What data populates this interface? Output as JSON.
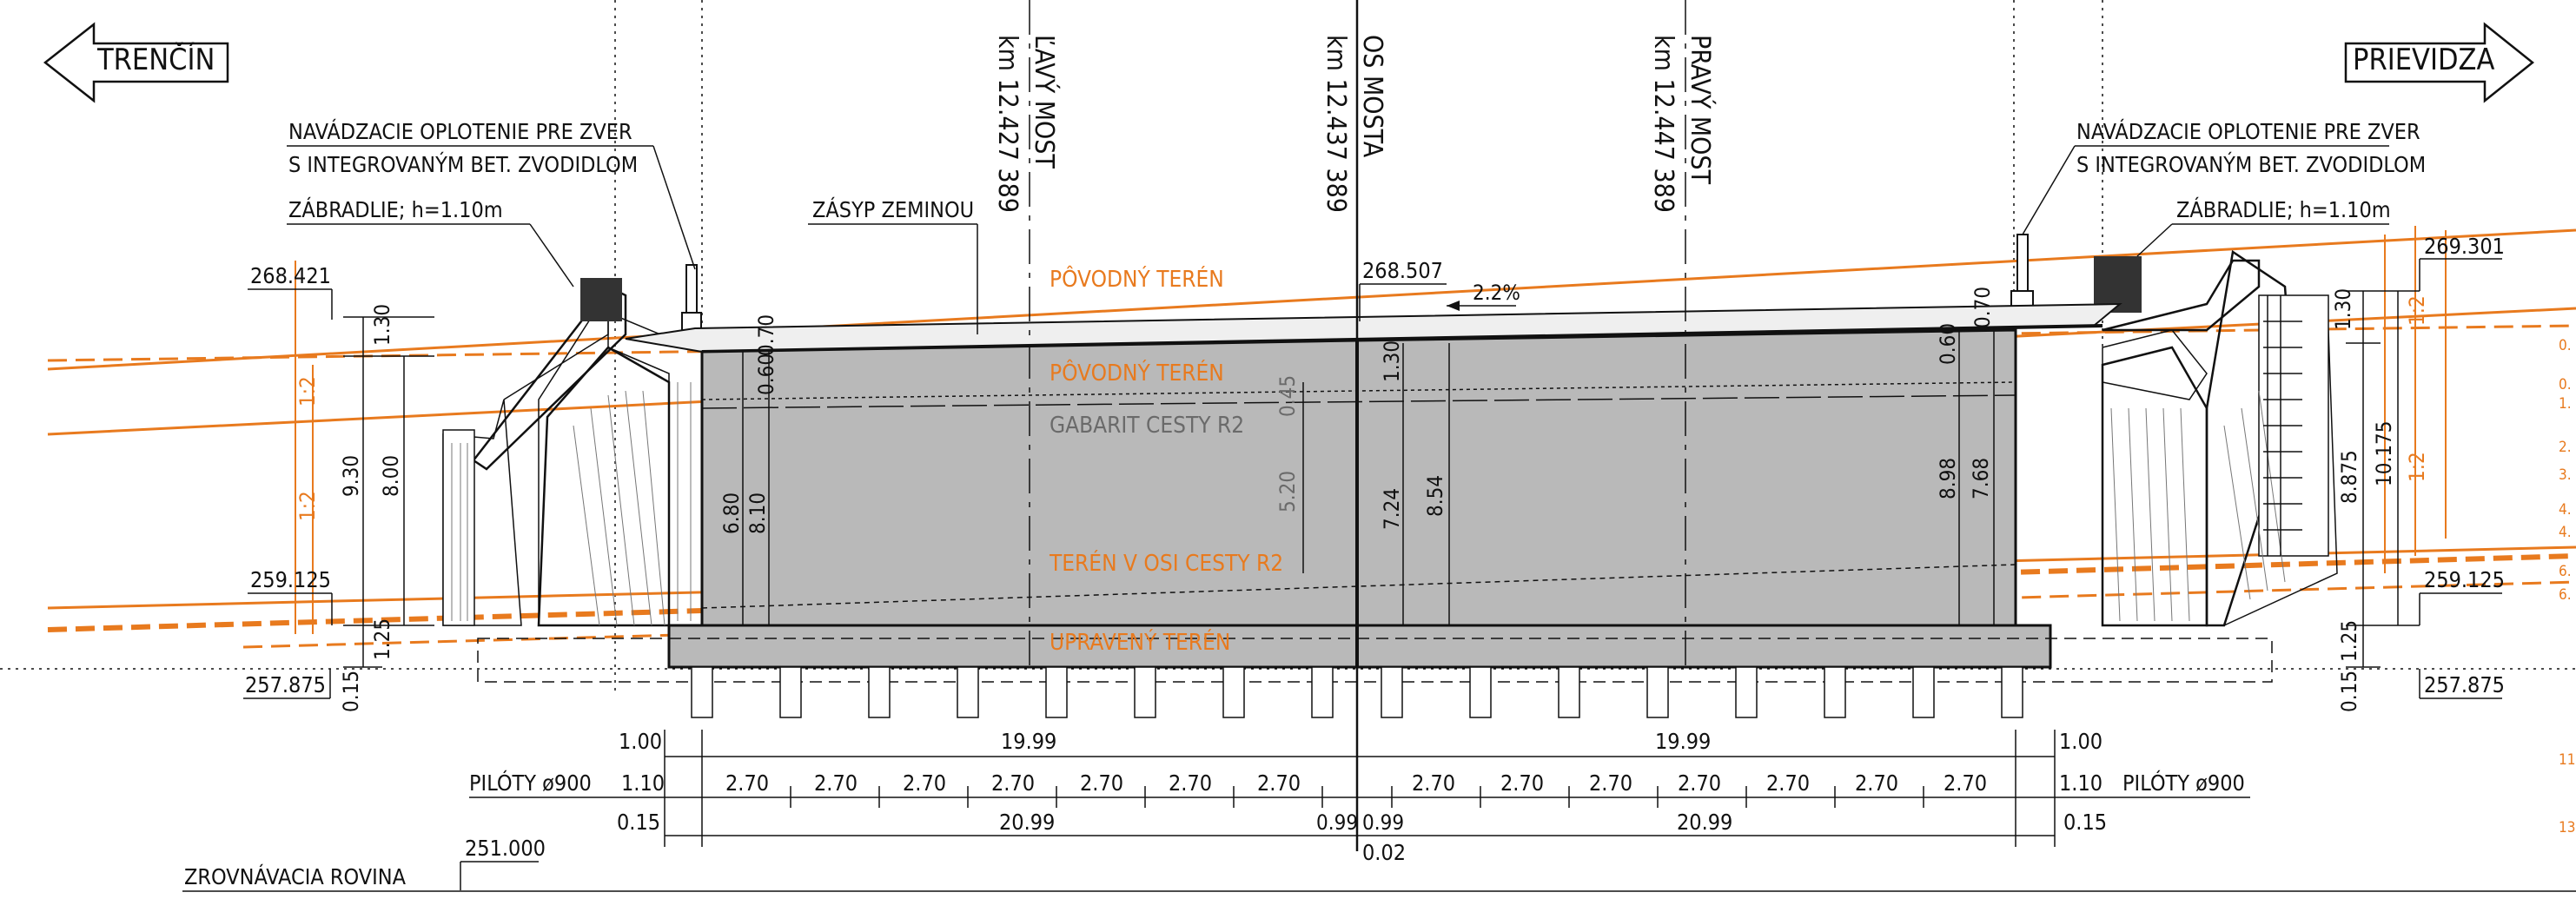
{
  "directions": {
    "left": "TRENČÍN",
    "right": "PRIEVIDZA"
  },
  "axes": {
    "left_bridge": {
      "label": "ĽAVÝ MOST",
      "station": "km 12.427 389"
    },
    "bridge_axis": {
      "label": "OS MOSTA",
      "station": "km 12.437 389"
    },
    "right_bridge": {
      "label": "PRAVÝ MOST",
      "station": "km 12.447 389"
    }
  },
  "callouts": {
    "fence_left_1": "NAVÁDZACIE OPLOTENIE PRE ZVER",
    "fence_left_2": "S INTEGROVANÝM BET. ZVODIDLOM",
    "railing_left": "ZÁBRADLIE; h=1.10m",
    "fill_soil": "ZÁSYP ZEMINOU",
    "fence_right_1": "NAVÁDZACIE OPLOTENIE PRE ZVER",
    "fence_right_2": "S INTEGROVANÝM BET. ZVODIDLOM",
    "railing_right": "ZÁBRADLIE; h=1.10m"
  },
  "terrain_labels": {
    "original_top": "PÔVODNÝ TERÉN",
    "original_mid": "PÔVODNÝ TERÉN",
    "clearance": "GABARIT CESTY R2",
    "terrain_axis": "TERÉN V OSI CESTY R2",
    "modified": "UPRAVENÝ TERÉN"
  },
  "elevations": {
    "left_top": "268.421",
    "center_top": "268.507",
    "right_top": "269.301",
    "left_bottom": "259.125",
    "right_bottom": "259.125",
    "left_found": "257.875",
    "right_found": "257.875",
    "leveling": "251.000"
  },
  "slopes": {
    "deck": "2.2%",
    "embank_1": "1:2",
    "embank_2": "1:2",
    "embank_3": "1:2",
    "embank_4": "1:2"
  },
  "vertical_dims": {
    "l_130": "1.30",
    "l_930": "9.30",
    "l_800": "8.00",
    "l_125": "1.25",
    "l_015": "0.15",
    "i_070": "0.70",
    "i_060": "0.60",
    "i_680": "6.80",
    "i_810": "8.10",
    "c_045": "0.45",
    "c_520": "5.20",
    "c_130": "1.30",
    "c_724": "7.24",
    "c_854": "8.54",
    "r_070": "0.70",
    "r_060": "0.60",
    "r_898": "8.98",
    "r_768": "7.68",
    "r_130": "1.30",
    "r_1017": "10.175",
    "r_8875": "8.875",
    "r_125": "1.25",
    "r_015": "0.15"
  },
  "horizontal_dims": {
    "row1": {
      "left": "1.00",
      "span_l": "19.99",
      "span_r": "19.99",
      "right": "1.00"
    },
    "row2": {
      "left_label": "PILÓTY ø900",
      "left": "1.10",
      "spans": [
        "2.70",
        "2.70",
        "2.70",
        "2.70",
        "2.70",
        "2.70",
        "2.70",
        "2.70",
        "2.70",
        "2.70",
        "2.70",
        "2.70",
        "2.70",
        "2.70"
      ],
      "right": "1.10",
      "right_label": "PILÓTY ø900"
    },
    "row3": {
      "left": "0.15",
      "span_l": "20.99",
      "mid_l": "0.99",
      "mid_r": "0.99",
      "span_r": "20.99",
      "right": "0.15"
    },
    "row4": {
      "center": "0.02"
    }
  },
  "leveling_label": "ZROVNÁVACIA ROVINA",
  "edge_ticks": [
    "0.",
    "0.",
    "1.",
    "2.",
    "3.",
    "4.",
    "4.",
    "6.",
    "6.",
    "11",
    "13"
  ],
  "colors": {
    "concrete": "#b9b9b9",
    "terrain": "#e87a1e",
    "ink": "#111111"
  }
}
